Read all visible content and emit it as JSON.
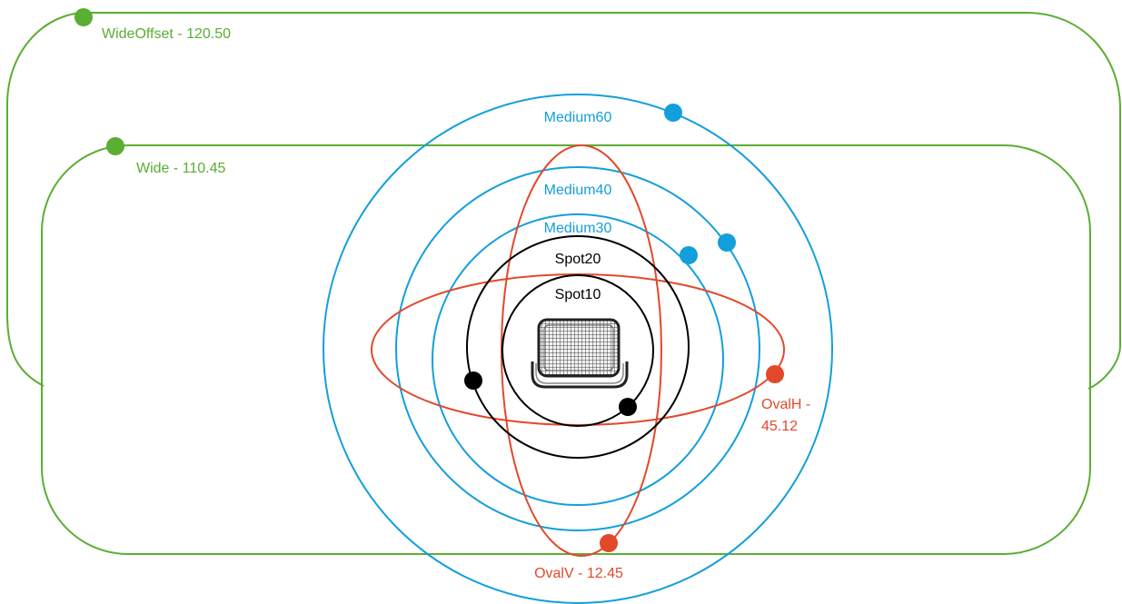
{
  "colors": {
    "wide": "#5aae32",
    "medium": "#139fdc",
    "oval": "#e2492b",
    "spot": "#000000",
    "fixture": "#333333"
  },
  "fixture": {
    "icon": "floodlight-fixture-icon"
  },
  "beams": {
    "wide_offset": {
      "label": "WideOffset - 120.50"
    },
    "wide": {
      "label": "Wide - 110.45"
    },
    "medium60": {
      "label": "Medium60"
    },
    "medium40": {
      "label": "Medium40"
    },
    "medium30": {
      "label": "Medium30"
    },
    "spot20": {
      "label": "Spot20"
    },
    "spot10": {
      "label": "Spot10"
    },
    "oval_h": {
      "label_line1": "OvalH -",
      "label_line2": "45.12"
    },
    "oval_v": {
      "label": "OvalV - 12.45"
    }
  }
}
